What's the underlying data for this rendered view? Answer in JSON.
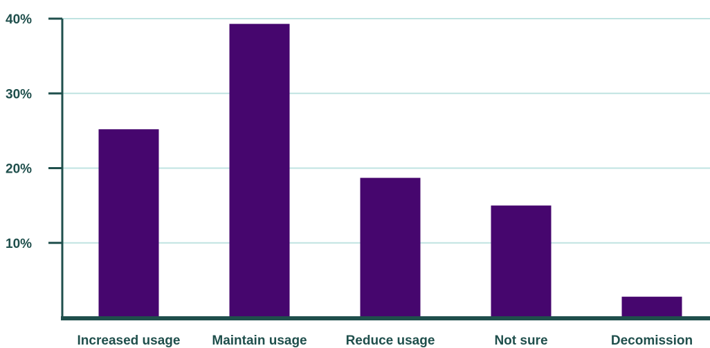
{
  "chart_data": {
    "type": "bar",
    "categories": [
      "Increased usage",
      "Maintain usage",
      "Reduce usage",
      "Not sure",
      "Decomission"
    ],
    "values": [
      25.2,
      39.3,
      18.7,
      15.0,
      2.8
    ],
    "ylim": [
      0,
      40
    ],
    "yticks": [
      10,
      20,
      30,
      40
    ],
    "ytick_labels": [
      "10%",
      "20%",
      "30%",
      "40%"
    ],
    "grid": true,
    "colors": {
      "bar": "#46066e",
      "axis": "#1f4f4c",
      "grid": "#bfe3e1",
      "text": "#1f4f4c"
    }
  }
}
